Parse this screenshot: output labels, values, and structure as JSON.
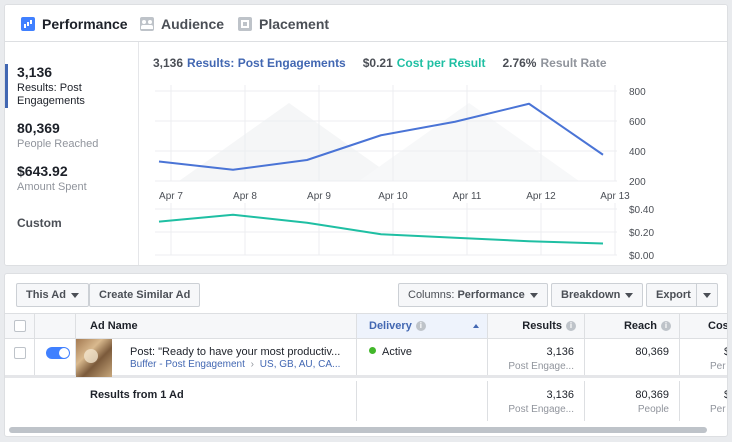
{
  "tabs": [
    {
      "label": "Performance",
      "icon": "bar-chart-icon",
      "active": true
    },
    {
      "label": "Audience",
      "icon": "audience-icon",
      "active": false
    },
    {
      "label": "Placement",
      "icon": "placement-icon",
      "active": false
    }
  ],
  "metrics": [
    {
      "value": "3,136",
      "label": "Results: Post Engagements",
      "selected": true
    },
    {
      "value": "80,369",
      "label": "People Reached",
      "selected": false
    },
    {
      "value": "$643.92",
      "label": "Amount Spent",
      "selected": false
    }
  ],
  "custom_label": "Custom",
  "chart_header": {
    "results_value": "3,136",
    "results_label": "Results: Post Engagements",
    "cpr_value": "$0.21",
    "cpr_label": "Cost per Result",
    "rate_value": "2.76%",
    "rate_label": "Result Rate"
  },
  "chart_data": [
    {
      "type": "line",
      "x": [
        "Apr 7",
        "Apr 8",
        "Apr 9",
        "Apr 10",
        "Apr 11",
        "Apr 12",
        "Apr 13"
      ],
      "series": [
        {
          "values": [
            330,
            275,
            340,
            505,
            595,
            715,
            375
          ],
          "color": "#4a74d6"
        }
      ],
      "y_ticks": [
        "800",
        "600",
        "400",
        "200"
      ],
      "ylim": [
        200,
        800
      ],
      "grid": true
    },
    {
      "type": "line",
      "x": [
        "Apr 7",
        "Apr 8",
        "Apr 9",
        "Apr 10",
        "Apr 11",
        "Apr 12",
        "Apr 13"
      ],
      "series": [
        {
          "values": [
            0.29,
            0.35,
            0.28,
            0.18,
            0.15,
            0.12,
            0.1
          ],
          "color": "#1fbfa3"
        }
      ],
      "y_ticks": [
        "$0.40",
        "$0.20",
        "$0.00"
      ],
      "ylim": [
        0,
        0.4
      ],
      "grid": true
    }
  ],
  "toolbar": {
    "this_ad": "This Ad",
    "create_similar": "Create Similar Ad",
    "columns_prefix": "Columns:",
    "columns_value": "Performance",
    "breakdown": "Breakdown",
    "export": "Export"
  },
  "table": {
    "headers": {
      "ad_name": "Ad Name",
      "delivery": "Delivery",
      "results": "Results",
      "reach": "Reach",
      "cost": "Cos"
    },
    "row": {
      "title": "Post: \"Ready to have your most productiv...",
      "subtitle_campaign": "Buffer - Post Engagement",
      "subtitle_geo": "US, GB, AU, CA...",
      "delivery": "Active",
      "results": "3,136",
      "results_sub": "Post Engage...",
      "reach": "80,369",
      "cost": "$",
      "cost_sub": "Per Post"
    },
    "summary": {
      "label": "Results from 1 Ad",
      "results": "3,136",
      "results_sub": "Post Engage...",
      "reach": "80,369",
      "reach_sub": "People",
      "cost": "$",
      "cost_sub": "Per Post"
    }
  },
  "colors": {
    "accent": "#4267b2",
    "line_results": "#4a74d6",
    "line_cost": "#1fbfa3",
    "active_status": "#42b72a"
  }
}
